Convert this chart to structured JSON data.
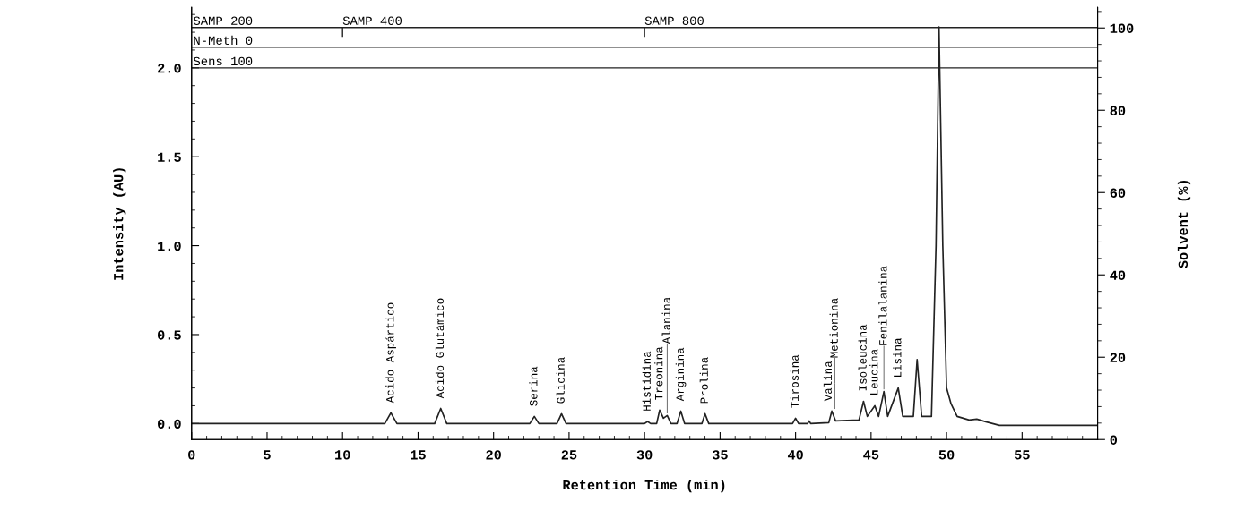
{
  "chart_data": {
    "type": "line",
    "xlabel": "Retention Time (min)",
    "ylabel": "Intensity (AU)",
    "y2label": "Solvent (%)",
    "xlim": [
      0,
      60
    ],
    "xticks": [
      0,
      5,
      10,
      15,
      20,
      25,
      30,
      35,
      40,
      45,
      50,
      55
    ],
    "ylim": [
      -0.09,
      2.34
    ],
    "yticks": [
      {
        "value": 0,
        "label": "0.0"
      },
      {
        "value": 0.5,
        "label": "0.5"
      },
      {
        "value": 1,
        "label": "1.0"
      },
      {
        "value": 1.5,
        "label": "1.5"
      },
      {
        "value": 2,
        "label": "2.0"
      }
    ],
    "y2lim": [
      0,
      105
    ],
    "y2ticks": [
      0,
      20,
      40,
      60,
      80,
      100
    ],
    "grid": false,
    "marker": "none",
    "line_style": "solid",
    "series": [
      {
        "color": "#222222",
        "x": [
          0,
          12.8,
          13.2,
          13.6,
          16.1,
          16.5,
          16.9,
          22.4,
          22.7,
          23.0,
          24.2,
          24.5,
          24.8,
          30.0,
          30.2,
          30.4,
          30.8,
          31.0,
          31.25,
          31.5,
          31.75,
          32.15,
          32.4,
          32.65,
          33.8,
          34.0,
          34.25,
          39.8,
          40.0,
          40.2,
          40.8,
          40.9,
          41.0,
          42.2,
          42.4,
          42.65,
          44.2,
          44.5,
          44.75,
          45.25,
          45.5,
          45.85,
          46.1,
          46.8,
          47.1,
          47.8,
          48.05,
          48.35,
          49.0,
          49.3,
          49.5,
          49.75,
          50.0,
          50.3,
          50.7,
          51.5,
          52.0,
          52.6,
          53.5,
          60
        ],
        "values": [
          0,
          0,
          0.06,
          0,
          0,
          0.085,
          0,
          0,
          0.04,
          0,
          0,
          0.055,
          0,
          0,
          0.012,
          0,
          0,
          0.075,
          0.03,
          0.045,
          0,
          0,
          0.07,
          0,
          0,
          0.055,
          0,
          0,
          0.03,
          0,
          0,
          0.015,
          0,
          0.005,
          0.07,
          0.015,
          0.02,
          0.125,
          0.04,
          0.1,
          0.04,
          0.18,
          0.04,
          0.2,
          0.04,
          0.04,
          0.36,
          0.04,
          0.04,
          1.0,
          2.23,
          1.0,
          0.2,
          0.11,
          0.04,
          0.02,
          0.025,
          0.01,
          -0.01,
          -0.01
        ]
      }
    ],
    "ref_lines": [
      {
        "axis": "y",
        "value": 2.227,
        "label": "SAMP 200",
        "color": "#222222"
      },
      {
        "axis": "y",
        "value": 2.116,
        "label": "N-Meth 0",
        "color": "#222222"
      },
      {
        "axis": "y",
        "value": 2.0,
        "label": "Sens 100",
        "color": "#222222"
      }
    ],
    "annotations": [
      {
        "text": "SAMP 400",
        "x": 10,
        "y": 2.227
      },
      {
        "text": "SAMP 800",
        "x": 30,
        "y": 2.227
      },
      {
        "text": "Acido Aspártico",
        "x": 13.2,
        "y": 0.06
      },
      {
        "text": "Acido Glutámico",
        "x": 16.5,
        "y": 0.085
      },
      {
        "text": "Serina",
        "x": 22.7,
        "y": 0.04
      },
      {
        "text": "Glicina",
        "x": 24.5,
        "y": 0.055
      },
      {
        "text": "Histidina",
        "x": 30.2,
        "y": 0.012
      },
      {
        "text": "Treonina",
        "x": 31.0,
        "y": 0.075
      },
      {
        "text": "Alanina",
        "x": 31.5,
        "y": 0.045
      },
      {
        "text": "Arginina",
        "x": 32.4,
        "y": 0.07
      },
      {
        "text": "Prolina",
        "x": 34.0,
        "y": 0.055
      },
      {
        "text": "Tirosina",
        "x": 40.0,
        "y": 0.03
      },
      {
        "text": "Valina",
        "x": 42.2,
        "y": 0.07
      },
      {
        "text": "Metionina",
        "x": 42.6,
        "y": 0.07
      },
      {
        "text": "Isoleucina",
        "x": 44.5,
        "y": 0.125
      },
      {
        "text": "Leucina",
        "x": 45.25,
        "y": 0.1
      },
      {
        "text": "Fenilalanina",
        "x": 45.85,
        "y": 0.18
      },
      {
        "text": "Lisina",
        "x": 46.8,
        "y": 0.2
      }
    ]
  }
}
